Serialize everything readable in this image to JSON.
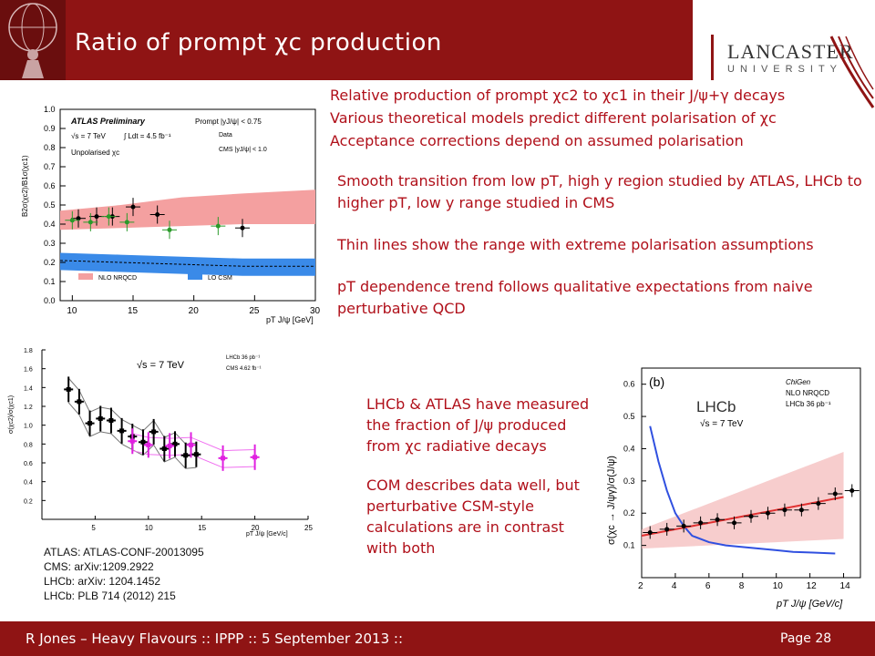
{
  "slide": {
    "title": "Ratio of prompt χc production",
    "logo_name": "LANCASTER",
    "logo_sub": "UNIVERSITY",
    "bullets_top": [
      "Relative production of prompt χc2 to χc1 in their J/ψ+γ decays",
      "Various theoretical models predict different polarisation of χc",
      "Acceptance corrections depend on assumed polarisation"
    ],
    "para_mid": [
      "Smooth transition from low pT, high y region studied by ATLAS, LHCb to higher pT, low y range studied in CMS",
      "Thin lines show the range with extreme polarisation assumptions",
      "pT dependence trend follows qualitative expectations from naive perturbative QCD"
    ],
    "para_lower": [
      "LHCb & ATLAS have measured the fraction of J/ψ produced from χc radiative decays",
      "COM describes data well, but perturbative CSM-style calculations are in contrast with both"
    ],
    "refs": [
      "ATLAS: ATLAS-CONF-20013095",
      "CMS: arXiv:1209.2922",
      "LHCb: arXiv: 1204.1452",
      "LHCb: PLB 714 (2012) 215"
    ],
    "footer_left": "R Jones – Heavy Flavours  ::  IPPP  ::  5 September 2013  ::",
    "footer_right": "Page 28",
    "colors": {
      "accent": "#8f1414",
      "text": "#b0101a"
    }
  },
  "chart_data": [
    {
      "type": "scatter",
      "title": "ATLAS Preliminary",
      "xlabel": "pT J/ψ [GeV]",
      "ylabel": "B2σ(χc2)/B1σ(χc1)",
      "xlim": [
        9,
        30
      ],
      "ylim": [
        0,
        1.0
      ],
      "xticks": [
        10,
        15,
        20,
        25,
        30
      ],
      "yticks": [
        0,
        0.1,
        0.2,
        0.3,
        0.4,
        0.5,
        0.6,
        0.7,
        0.8,
        0.9,
        1.0
      ],
      "labels": {
        "sqrt_s": "√s = 7 TeV",
        "lumi": "∫ Ldt = 4.5 fb⁻¹",
        "unpol": "Unpolarised χc",
        "prompt": "Prompt |yJ/ψ| < 0.75",
        "data_label": "Data",
        "cms_label": "CMS |yJ/ψ| < 1.0",
        "nlo_label": "NLO NRQCD",
        "lo_label": "LO CSM"
      },
      "series": [
        {
          "name": "Data",
          "x": [
            10.5,
            12,
            13.3,
            15,
            17,
            24
          ],
          "y": [
            0.43,
            0.44,
            0.44,
            0.49,
            0.45,
            0.38
          ]
        },
        {
          "name": "CMS |yJ/ψ| < 1.0",
          "x": [
            10,
            11.5,
            13,
            14.5,
            18,
            22
          ],
          "y": [
            0.42,
            0.41,
            0.44,
            0.41,
            0.37,
            0.39
          ]
        }
      ],
      "bands": {
        "nlo_lower": [
          0.37,
          0.38,
          0.39,
          0.4,
          0.4
        ],
        "nlo_upper": [
          0.47,
          0.5,
          0.54,
          0.56,
          0.58
        ],
        "nlo_x": [
          9,
          14,
          19,
          24,
          30
        ],
        "lo": [
          0.21,
          0.2,
          0.19,
          0.18,
          0.18
        ]
      }
    },
    {
      "type": "scatter",
      "title": "",
      "xlabel": "pT J/ψ [GeV/c]",
      "ylabel": "σ(χc2)/σ(χc1)",
      "xlim": [
        0,
        25
      ],
      "ylim": [
        0,
        1.8
      ],
      "xticks": [
        5,
        10,
        15,
        20,
        25
      ],
      "yticks": [
        0.2,
        0.4,
        0.6,
        0.8,
        1.0,
        1.2,
        1.4,
        1.6,
        1.8
      ],
      "labels": {
        "sqrt_s": "√s = 7 TeV",
        "lhcb": "LHCb 36 pb⁻¹",
        "cms": "CMS 4.62 fb⁻¹"
      },
      "series": [
        {
          "name": "LHCb 36 pb⁻¹",
          "x": [
            2.5,
            3.5,
            4.5,
            5.5,
            6.5,
            7.5,
            8.5,
            9.5,
            10.5,
            11.5,
            12.5,
            13.5,
            14.5
          ],
          "y": [
            1.38,
            1.25,
            1.02,
            1.07,
            1.05,
            0.94,
            0.88,
            0.82,
            0.93,
            0.75,
            0.8,
            0.68,
            0.69
          ]
        },
        {
          "name": "CMS 4.62 fb⁻¹",
          "x": [
            8.5,
            10,
            12,
            14,
            17,
            20
          ],
          "y": [
            0.83,
            0.79,
            0.78,
            0.79,
            0.65,
            0.66
          ]
        }
      ]
    },
    {
      "type": "line",
      "title": "LHCb",
      "xlabel": "pT J/ψ [GeV/c]",
      "ylabel": "σ(χc → J/ψγ)/σ(J/ψ)",
      "xlim": [
        2,
        15
      ],
      "ylim": [
        0,
        0.65
      ],
      "xticks": [
        2,
        4,
        6,
        8,
        10,
        12,
        14
      ],
      "yticks": [
        0.1,
        0.2,
        0.3,
        0.4,
        0.5,
        0.6
      ],
      "labels": {
        "panel": "(b)",
        "sqrt_s": "√s = 7 TeV",
        "chigen": "ChiGen",
        "nlo": "NLO NRQCD",
        "lhcb": "LHCb 36 pb⁻¹"
      },
      "series": [
        {
          "name": "LHCb 36 pb⁻¹",
          "x": [
            2.5,
            3.5,
            4.5,
            5.5,
            6.5,
            7.5,
            8.5,
            9.5,
            10.5,
            11.5,
            12.5,
            13.5,
            14.5
          ],
          "y": [
            0.14,
            0.15,
            0.16,
            0.17,
            0.18,
            0.17,
            0.19,
            0.2,
            0.21,
            0.21,
            0.23,
            0.26,
            0.27
          ]
        },
        {
          "name": "ChiGen",
          "x": [
            2.5,
            3,
            3.5,
            4,
            4.5,
            5,
            6,
            7,
            8,
            9,
            10,
            11,
            12,
            13,
            13.5
          ],
          "y": [
            0.47,
            0.36,
            0.27,
            0.2,
            0.16,
            0.13,
            0.11,
            0.1,
            0.095,
            0.09,
            0.085,
            0.08,
            0.078,
            0.076,
            0.075
          ]
        },
        {
          "name": "NLO NRQCD",
          "x": [
            2,
            4,
            6,
            8,
            10,
            12,
            14
          ],
          "y": [
            0.13,
            0.15,
            0.17,
            0.19,
            0.21,
            0.23,
            0.25
          ]
        }
      ]
    }
  ]
}
